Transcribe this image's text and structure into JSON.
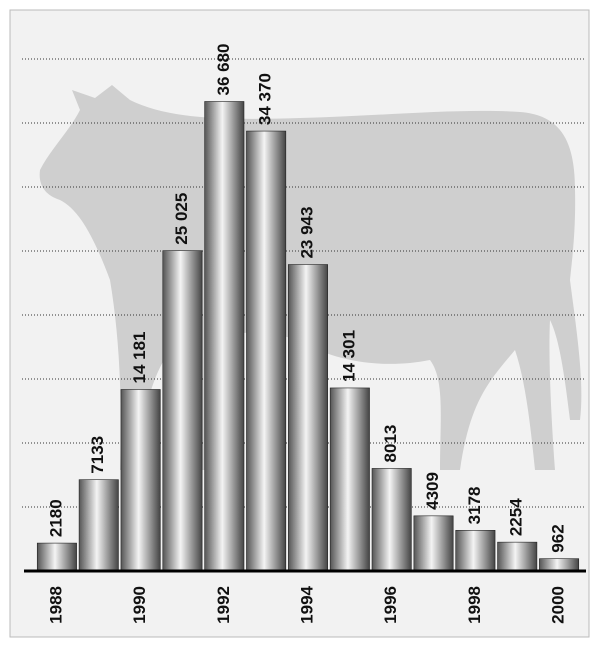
{
  "chart_data": {
    "type": "bar",
    "categories": [
      "1988",
      null,
      "1990",
      null,
      "1992",
      null,
      "1994",
      null,
      "1996",
      null,
      "1998",
      null,
      "2000"
    ],
    "values": [
      2180,
      7133,
      14181,
      25025,
      36680,
      34370,
      23943,
      14301,
      8013,
      4309,
      3178,
      2254,
      962
    ],
    "value_labels": [
      "2180",
      "7133",
      "14 181",
      "25 025",
      "36 680",
      "34 370",
      "23 943",
      "14 301",
      "8013",
      "4309",
      "3178",
      "2254",
      "962"
    ],
    "ylim": [
      0,
      40000
    ],
    "yticks": [
      5000,
      10000,
      15000,
      20000,
      25000,
      30000,
      35000,
      40000
    ],
    "grid": true
  }
}
